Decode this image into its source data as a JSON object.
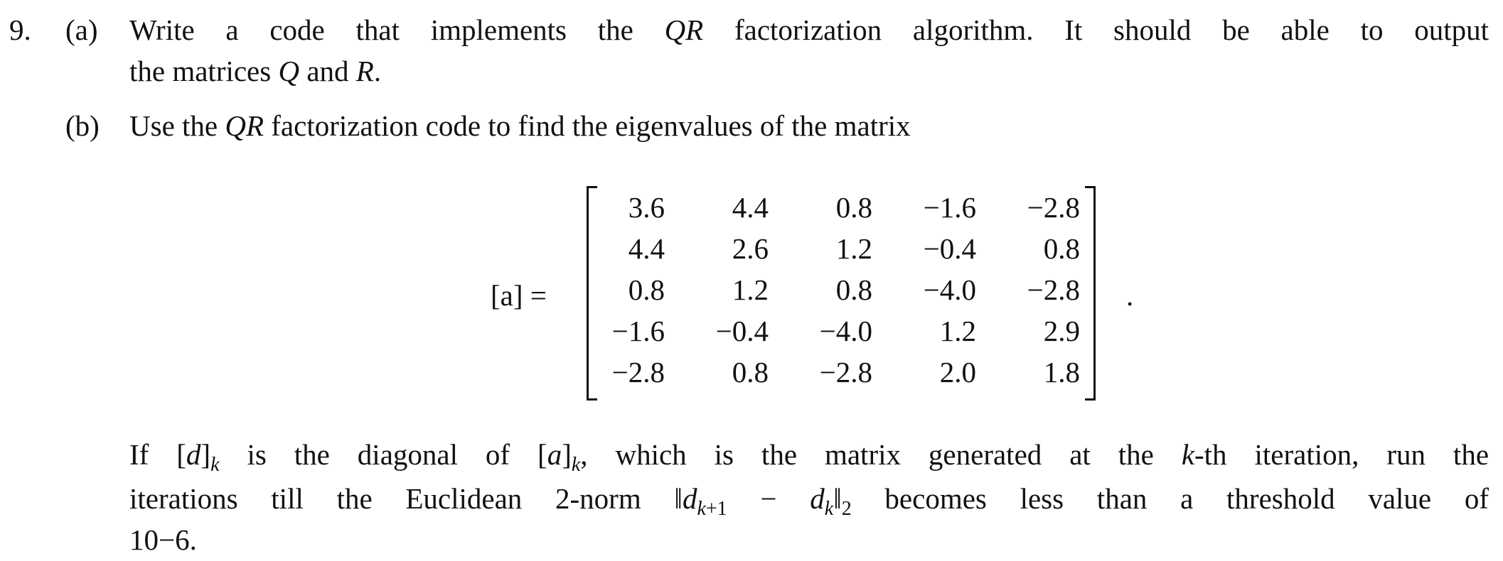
{
  "problem": {
    "number": "9.",
    "part_a": {
      "label": "(a)",
      "line1": "Write a code that implements the QR factorization algorithm. It should be able to output",
      "line2": "the matrices Q and R."
    },
    "part_b": {
      "label": "(b)",
      "intro": "Use the QR factorization code to find the eigenvalues of the matrix",
      "matrix_label": "[a] =",
      "matrix": [
        [
          "3.6",
          "4.4",
          "0.8",
          "−1.6",
          "−2.8"
        ],
        [
          "4.4",
          "2.6",
          "1.2",
          "−0.4",
          "0.8"
        ],
        [
          "0.8",
          "1.2",
          "0.8",
          "−4.0",
          "−2.8"
        ],
        [
          "−1.6",
          "−0.4",
          "−4.0",
          "1.2",
          "2.9"
        ],
        [
          "−2.8",
          "0.8",
          "−2.8",
          "2.0",
          "1.8"
        ]
      ],
      "matrix_end": ".",
      "para_line1": "If [d]k is the diagonal of [a]k, which is the matrix generated at the k-th iteration, run the",
      "para_line2": "iterations till the Euclidean 2-norm ‖dk+1 − dk‖2 becomes less than a threshold value of",
      "para_line3": "10−6."
    }
  }
}
